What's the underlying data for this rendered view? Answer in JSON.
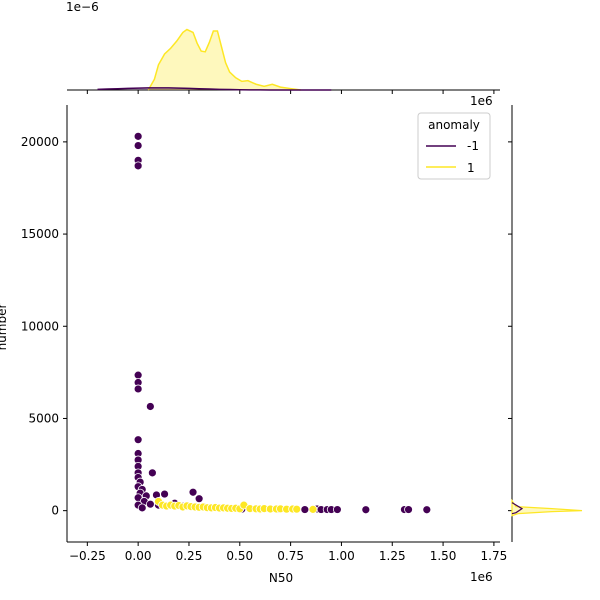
{
  "chart_data": {
    "type": "scatter",
    "xlabel": "N50",
    "ylabel": "number",
    "x_offset_label": "1e6",
    "marg_x_offset_label": "1e6",
    "marg_y_offset_label": "1e−6",
    "xlim": [
      -0.35,
      1.78
    ],
    "ylim": [
      -1700,
      22000
    ],
    "x_ticks": [
      -0.25,
      0.0,
      0.25,
      0.5,
      0.75,
      1.0,
      1.25,
      1.5,
      1.75
    ],
    "x_tick_labels": [
      "−0.25",
      "0.00",
      "0.25",
      "0.50",
      "0.75",
      "1.00",
      "1.25",
      "1.50",
      "1.75"
    ],
    "y_ticks": [
      0,
      5000,
      10000,
      15000,
      20000
    ],
    "y_tick_labels": [
      "0",
      "5000",
      "10000",
      "15000",
      "20000"
    ],
    "legend": {
      "title": "anomaly",
      "placement": "top-right",
      "entries": [
        {
          "label": "-1",
          "color": "#440154"
        },
        {
          "label": "1",
          "color": "#fde725"
        }
      ]
    },
    "series": [
      {
        "name": "-1",
        "color": "#440154",
        "points": [
          [
            0.0,
            20300
          ],
          [
            0.0,
            19800
          ],
          [
            0.0,
            19000
          ],
          [
            0.0,
            18700
          ],
          [
            0.0,
            7350
          ],
          [
            0.0,
            6950
          ],
          [
            0.0,
            6600
          ],
          [
            0.06,
            5650
          ],
          [
            0.0,
            3850
          ],
          [
            0.0,
            3100
          ],
          [
            0.0,
            2750
          ],
          [
            0.0,
            2400
          ],
          [
            0.0,
            2050
          ],
          [
            0.07,
            2050
          ],
          [
            0.0,
            1800
          ],
          [
            0.01,
            1550
          ],
          [
            0.0,
            1300
          ],
          [
            0.02,
            1150
          ],
          [
            0.01,
            950
          ],
          [
            0.04,
            800
          ],
          [
            0.09,
            850
          ],
          [
            0.13,
            900
          ],
          [
            0.27,
            1000
          ],
          [
            0.3,
            650
          ],
          [
            0.0,
            700
          ],
          [
            0.03,
            500
          ],
          [
            0.06,
            350
          ],
          [
            0.1,
            300
          ],
          [
            0.0,
            300
          ],
          [
            0.02,
            150
          ],
          [
            0.18,
            400
          ],
          [
            0.22,
            250
          ],
          [
            0.33,
            200
          ],
          [
            0.51,
            80
          ],
          [
            0.6,
            60
          ],
          [
            0.69,
            70
          ],
          [
            0.82,
            60
          ],
          [
            0.88,
            90
          ],
          [
            0.9,
            60
          ],
          [
            0.93,
            60
          ],
          [
            0.95,
            60
          ],
          [
            0.98,
            60
          ],
          [
            1.12,
            50
          ],
          [
            1.31,
            60
          ],
          [
            1.33,
            60
          ],
          [
            1.42,
            50
          ]
        ]
      },
      {
        "name": "1",
        "color": "#fde725",
        "points": [
          [
            0.1,
            500
          ],
          [
            0.12,
            300
          ],
          [
            0.14,
            250
          ],
          [
            0.16,
            300
          ],
          [
            0.18,
            250
          ],
          [
            0.2,
            280
          ],
          [
            0.22,
            200
          ],
          [
            0.24,
            260
          ],
          [
            0.26,
            220
          ],
          [
            0.28,
            200
          ],
          [
            0.3,
            180
          ],
          [
            0.32,
            200
          ],
          [
            0.34,
            160
          ],
          [
            0.36,
            150
          ],
          [
            0.38,
            170
          ],
          [
            0.4,
            140
          ],
          [
            0.42,
            150
          ],
          [
            0.44,
            130
          ],
          [
            0.46,
            120
          ],
          [
            0.48,
            130
          ],
          [
            0.5,
            100
          ],
          [
            0.52,
            300
          ],
          [
            0.55,
            110
          ],
          [
            0.58,
            100
          ],
          [
            0.6,
            90
          ],
          [
            0.62,
            110
          ],
          [
            0.65,
            90
          ],
          [
            0.68,
            90
          ],
          [
            0.7,
            100
          ],
          [
            0.73,
            80
          ],
          [
            0.76,
            90
          ],
          [
            0.78,
            80
          ],
          [
            0.86,
            70
          ]
        ]
      }
    ],
    "top_marginal": {
      "type": "area",
      "x": [
        0.05,
        0.08,
        0.1,
        0.13,
        0.16,
        0.19,
        0.22,
        0.24,
        0.27,
        0.29,
        0.31,
        0.33,
        0.35,
        0.37,
        0.39,
        0.41,
        0.43,
        0.45,
        0.48,
        0.51,
        0.54,
        0.58,
        0.62,
        0.66,
        0.7,
        0.75,
        0.8
      ],
      "series_1": [
        0.0,
        0.15,
        0.35,
        0.5,
        0.58,
        0.68,
        0.8,
        0.84,
        0.8,
        0.65,
        0.54,
        0.53,
        0.66,
        0.82,
        0.82,
        0.6,
        0.38,
        0.25,
        0.17,
        0.12,
        0.13,
        0.08,
        0.05,
        0.08,
        0.04,
        0.02,
        0.0
      ],
      "series_neg1_max": 0.03
    }
  }
}
